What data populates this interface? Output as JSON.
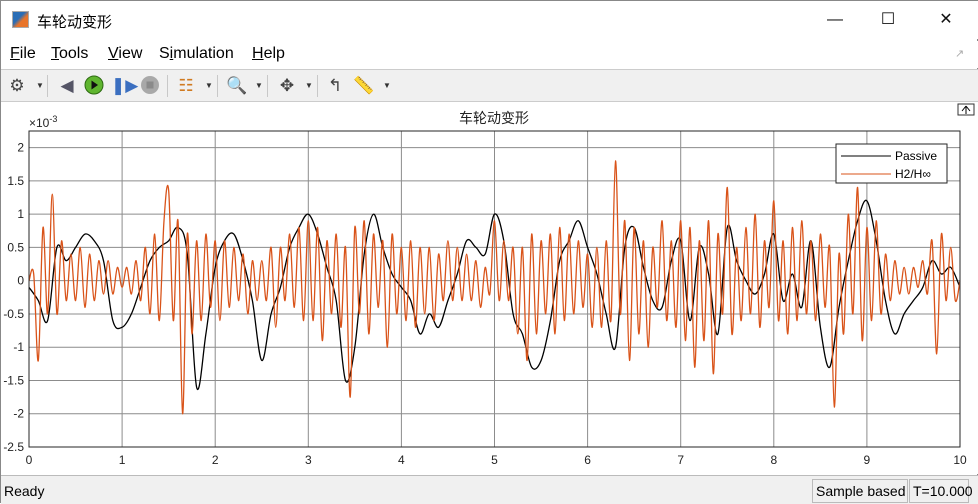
{
  "window": {
    "title": "车轮动变形",
    "minimize_icon": "minimize-icon",
    "maximize_icon": "maximize-icon",
    "close_icon": "close-icon"
  },
  "menu": [
    {
      "label": "File",
      "accel": "F",
      "rest": "ile"
    },
    {
      "label": "Tools",
      "accel": "T",
      "rest": "ools"
    },
    {
      "label": "View",
      "accel": "V",
      "rest": "iew"
    },
    {
      "label": "Simulation",
      "pre": "S",
      "accel": "i",
      "rest": "mulation"
    },
    {
      "label": "Help",
      "accel": "H",
      "rest": "elp"
    }
  ],
  "toolbar": [
    "settings-gear-icon",
    "step-back-icon",
    "run-icon",
    "step-forward-icon",
    "stop-icon",
    "highlight-block-icon",
    "zoom-in-icon",
    "fit-to-view-icon",
    "triggers-icon",
    "measurements-ruler-icon"
  ],
  "status": {
    "left": "Ready",
    "mode": "Sample based",
    "time": "T=10.000"
  },
  "colors": {
    "passive": "#000000",
    "h2hinf": "#D95319",
    "grid": "#8c8c8c"
  },
  "chart_data": {
    "type": "line",
    "title": "车轮动变形",
    "exponent_label": "×10",
    "exponent_power": "-3",
    "xlim": [
      0,
      10
    ],
    "ylim": [
      -2.5,
      2.25
    ],
    "x_ticks": [
      "0",
      "1",
      "2",
      "3",
      "4",
      "5",
      "6",
      "7",
      "8",
      "9",
      "10"
    ],
    "y_ticks": [
      "2",
      "1.5",
      "1",
      "0.5",
      "0",
      "-0.5",
      "-1",
      "-1.5",
      "-2",
      "-2.5"
    ],
    "grid": true,
    "legend_position": "top-right",
    "series": [
      {
        "name": "Passive",
        "x_step": 0.1,
        "x_start": 0,
        "values": [
          -0.1,
          -0.3,
          -0.6,
          0.5,
          0.3,
          0.5,
          0.7,
          0.6,
          0.3,
          -0.6,
          -0.7,
          -0.5,
          -0.1,
          0.3,
          0.5,
          0.6,
          0.8,
          0.4,
          -1.6,
          -0.8,
          0.2,
          0.6,
          0.7,
          0.3,
          -0.3,
          -1.2,
          -0.5,
          -0.1,
          0.5,
          0.8,
          1.0,
          0.7,
          0.2,
          -0.3,
          -1.5,
          -1.0,
          0.4,
          1.0,
          0.5,
          0.1,
          -0.1,
          -0.3,
          -0.8,
          -0.5,
          -0.7,
          -0.3,
          0.1,
          0.6,
          0.5,
          0.4,
          1.0,
          0.6,
          -0.5,
          -0.8,
          -1.3,
          -1.2,
          -0.6,
          0.3,
          0.6,
          0.9,
          0.5,
          0.1,
          -0.5,
          -1.0,
          0.5,
          0.8,
          0.2,
          -0.3,
          -0.4,
          0.3,
          0.6,
          -0.6,
          0.5,
          0.1,
          -0.8,
          0.8,
          0.3,
          0.0,
          -0.2,
          0.1,
          0.7,
          -0.3,
          0.1,
          -0.4,
          0.6,
          -0.7,
          -1.3,
          -0.4,
          0.3,
          0.9,
          1.2,
          0.6,
          -0.3,
          -0.8,
          -0.5,
          -0.3,
          -0.1,
          0.3,
          0.1,
          0.2,
          -0.1
        ]
      },
      {
        "name": "H2/H∞",
        "x_step": 0.05,
        "x_start": 0,
        "values": [
          0.0,
          0.1,
          -1.2,
          0.8,
          -0.5,
          1.3,
          -0.5,
          0.6,
          -0.3,
          0.4,
          -0.3,
          0.5,
          -0.4,
          0.4,
          -0.3,
          0.3,
          -0.2,
          0.3,
          -0.2,
          0.2,
          -0.1,
          0.2,
          -0.2,
          0.3,
          -0.3,
          0.5,
          -0.5,
          0.7,
          -0.6,
          0.9,
          1.35,
          -0.6,
          0.9,
          -2.0,
          0.7,
          -0.8,
          0.6,
          -0.6,
          0.7,
          -0.4,
          0.6,
          -0.6,
          0.6,
          -0.4,
          0.5,
          -0.3,
          0.4,
          -0.5,
          0.3,
          -0.3,
          0.3,
          -0.3,
          0.5,
          -0.7,
          0.5,
          -0.3,
          0.7,
          -0.4,
          0.8,
          -0.6,
          0.9,
          -0.6,
          0.8,
          -0.9,
          0.6,
          -0.5,
          0.7,
          -0.7,
          0.5,
          -1.75,
          0.8,
          -0.5,
          0.9,
          -0.8,
          0.7,
          -0.4,
          0.6,
          -1.0,
          0.7,
          -0.5,
          0.5,
          -0.6,
          0.6,
          -0.7,
          0.5,
          -0.5,
          0.5,
          -0.6,
          0.4,
          -0.3,
          0.6,
          -0.3,
          0.5,
          -0.3,
          0.4,
          -0.3,
          0.3,
          -0.4,
          0.2,
          -0.2,
          0.9,
          -0.3,
          0.6,
          -0.3,
          0.5,
          -0.8,
          0.5,
          -1.2,
          0.7,
          -0.8,
          0.6,
          -0.5,
          0.7,
          -0.8,
          0.8,
          -0.6,
          0.7,
          -0.5,
          0.6,
          -0.4,
          0.4,
          -0.7,
          0.5,
          -0.7,
          0.6,
          -0.6,
          1.8,
          -0.5,
          0.9,
          -1.2,
          0.8,
          -0.8,
          0.6,
          -1.0,
          0.5,
          -0.4,
          0.9,
          -0.6,
          0.6,
          -0.7,
          0.9,
          -0.9,
          0.8,
          -1.3,
          0.6,
          -0.9,
          0.9,
          -1.4,
          0.7,
          -0.5,
          1.4,
          -0.8,
          0.5,
          -0.6,
          0.8,
          -0.5,
          1.0,
          -0.7,
          0.6,
          -0.4,
          1.2,
          -0.6,
          0.6,
          -0.8,
          0.8,
          -0.6,
          0.9,
          -0.5,
          0.6,
          -0.6,
          0.7,
          -0.4,
          0.5,
          -1.9,
          0.4,
          -0.8,
          1.0,
          -0.5,
          1.4,
          -0.9,
          0.8,
          -0.6,
          0.9,
          -0.5,
          0.4,
          -0.3,
          0.3,
          -0.2,
          0.2,
          -0.2,
          0.2,
          -0.1,
          0.3,
          -0.2,
          0.6,
          -1.1,
          0.7,
          -0.3,
          0.5,
          -0.3,
          0.0
        ]
      }
    ]
  }
}
